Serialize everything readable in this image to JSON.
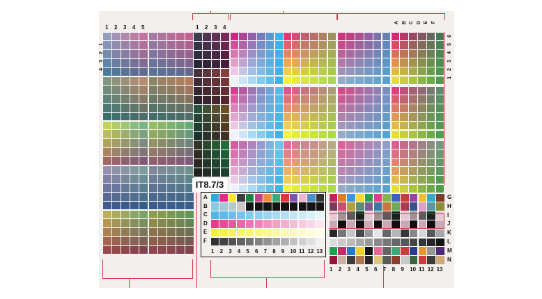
{
  "chart": {
    "title": "IT8.7/3",
    "top_left_columns": [
      "1",
      "2",
      "3",
      "4",
      "5"
    ],
    "mid_left_columns": [
      "1",
      "2",
      "3",
      "4"
    ],
    "right_top_columns": [
      "A",
      "B",
      "C",
      "D",
      "E",
      "F"
    ],
    "right_side_rows": [
      "6",
      "5",
      "4",
      "3",
      "2",
      "1"
    ],
    "bottom_left_rows": [
      "A",
      "B",
      "C",
      "D",
      "E",
      "F"
    ],
    "bottom_left_columns": [
      "1",
      "2",
      "3",
      "4",
      "5",
      "6",
      "7",
      "8",
      "9",
      "10",
      "11",
      "12",
      "13"
    ],
    "bottom_right_rows": [
      "G",
      "H",
      "I",
      "J",
      "K",
      "L",
      "M",
      "N"
    ],
    "bottom_right_columns": [
      "1",
      "2",
      "3",
      "4",
      "5",
      "6",
      "7",
      "8",
      "9",
      "10",
      "11",
      "12",
      "13"
    ],
    "left_side_rows": [
      "1",
      "2",
      "3",
      "4"
    ],
    "colors": {
      "background": "#f3efec",
      "marker_red": "#d23a4a"
    }
  }
}
